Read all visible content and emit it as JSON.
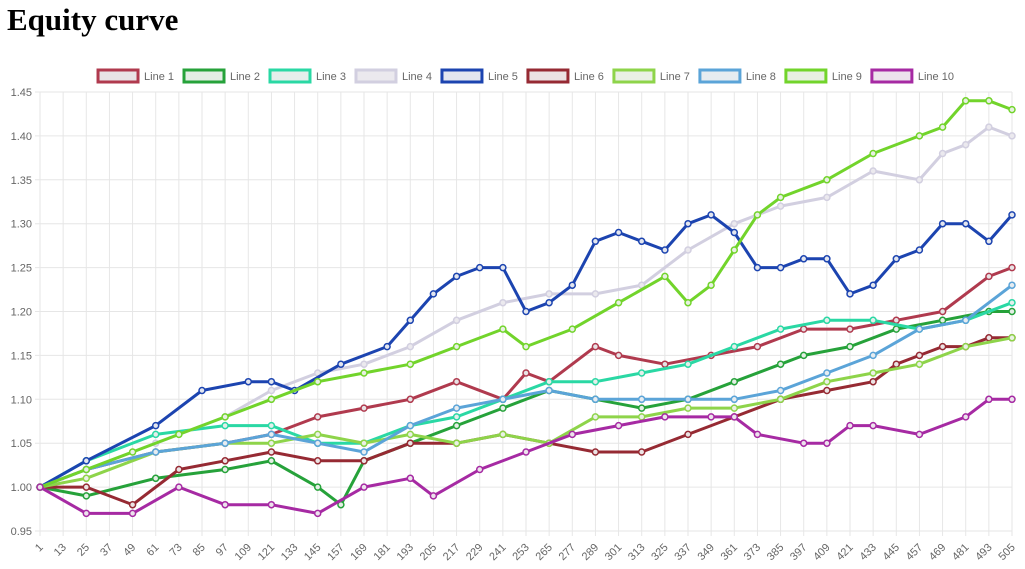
{
  "page": {
    "title": "Equity curve"
  },
  "chart_data": {
    "type": "line",
    "title": "Equity curve",
    "xlabel": "",
    "ylabel": "",
    "x_range": [
      1,
      505
    ],
    "x_tick_labels": [
      "1",
      "13",
      "25",
      "37",
      "49",
      "61",
      "73",
      "85",
      "97",
      "109",
      "121",
      "133",
      "145",
      "157",
      "169",
      "181",
      "193",
      "205",
      "217",
      "229",
      "241",
      "253",
      "265",
      "277",
      "289",
      "301",
      "313",
      "325",
      "337",
      "349",
      "361",
      "373",
      "385",
      "397",
      "409",
      "421",
      "433",
      "445",
      "457",
      "469",
      "481",
      "493",
      "505"
    ],
    "ylim": [
      0.95,
      1.45
    ],
    "y_ticks": [
      "0.95",
      "1.00",
      "1.05",
      "1.10",
      "1.15",
      "1.20",
      "1.25",
      "1.30",
      "1.35",
      "1.40",
      "1.45"
    ],
    "grid": true,
    "legend_position": "top",
    "series": [
      {
        "name": "Line 1",
        "color": "#b03a4e",
        "fill": "#e8e3e5",
        "points": [
          [
            1,
            1.0
          ],
          [
            25,
            1.02
          ],
          [
            61,
            1.04
          ],
          [
            97,
            1.05
          ],
          [
            121,
            1.06
          ],
          [
            145,
            1.08
          ],
          [
            169,
            1.09
          ],
          [
            193,
            1.1
          ],
          [
            217,
            1.12
          ],
          [
            241,
            1.1
          ],
          [
            253,
            1.13
          ],
          [
            265,
            1.12
          ],
          [
            289,
            1.16
          ],
          [
            301,
            1.15
          ],
          [
            325,
            1.14
          ],
          [
            349,
            1.15
          ],
          [
            373,
            1.16
          ],
          [
            397,
            1.18
          ],
          [
            421,
            1.18
          ],
          [
            445,
            1.19
          ],
          [
            469,
            1.2
          ],
          [
            493,
            1.24
          ],
          [
            505,
            1.25
          ]
        ]
      },
      {
        "name": "Line 2",
        "color": "#26a23a",
        "fill": "#e4eee5",
        "points": [
          [
            1,
            1.0
          ],
          [
            25,
            0.99
          ],
          [
            61,
            1.01
          ],
          [
            97,
            1.02
          ],
          [
            121,
            1.03
          ],
          [
            145,
            1.0
          ],
          [
            157,
            0.98
          ],
          [
            169,
            1.03
          ],
          [
            193,
            1.05
          ],
          [
            217,
            1.07
          ],
          [
            241,
            1.09
          ],
          [
            265,
            1.11
          ],
          [
            289,
            1.1
          ],
          [
            313,
            1.09
          ],
          [
            337,
            1.1
          ],
          [
            361,
            1.12
          ],
          [
            385,
            1.14
          ],
          [
            397,
            1.15
          ],
          [
            421,
            1.16
          ],
          [
            445,
            1.18
          ],
          [
            469,
            1.19
          ],
          [
            493,
            1.2
          ],
          [
            505,
            1.2
          ]
        ]
      },
      {
        "name": "Line 3",
        "color": "#2ad8a4",
        "fill": "#e5eeeb",
        "points": [
          [
            1,
            1.0
          ],
          [
            25,
            1.03
          ],
          [
            61,
            1.06
          ],
          [
            97,
            1.07
          ],
          [
            121,
            1.07
          ],
          [
            145,
            1.05
          ],
          [
            169,
            1.05
          ],
          [
            193,
            1.07
          ],
          [
            217,
            1.08
          ],
          [
            241,
            1.1
          ],
          [
            265,
            1.12
          ],
          [
            289,
            1.12
          ],
          [
            313,
            1.13
          ],
          [
            337,
            1.14
          ],
          [
            361,
            1.16
          ],
          [
            385,
            1.18
          ],
          [
            409,
            1.19
          ],
          [
            433,
            1.19
          ],
          [
            457,
            1.18
          ],
          [
            481,
            1.19
          ],
          [
            505,
            1.21
          ]
        ]
      },
      {
        "name": "Line 4",
        "color": "#d2cfe0",
        "fill": "#ebe9ee",
        "points": [
          [
            1,
            1.0
          ],
          [
            25,
            1.02
          ],
          [
            61,
            1.05
          ],
          [
            97,
            1.08
          ],
          [
            121,
            1.11
          ],
          [
            145,
            1.13
          ],
          [
            169,
            1.14
          ],
          [
            193,
            1.16
          ],
          [
            217,
            1.19
          ],
          [
            241,
            1.21
          ],
          [
            265,
            1.22
          ],
          [
            289,
            1.22
          ],
          [
            313,
            1.23
          ],
          [
            337,
            1.27
          ],
          [
            361,
            1.3
          ],
          [
            385,
            1.32
          ],
          [
            409,
            1.33
          ],
          [
            433,
            1.36
          ],
          [
            457,
            1.35
          ],
          [
            469,
            1.38
          ],
          [
            481,
            1.39
          ],
          [
            493,
            1.41
          ],
          [
            505,
            1.4
          ]
        ]
      },
      {
        "name": "Line 5",
        "color": "#1c44b0",
        "fill": "#e3e6ef",
        "points": [
          [
            1,
            1.0
          ],
          [
            25,
            1.03
          ],
          [
            61,
            1.07
          ],
          [
            85,
            1.11
          ],
          [
            109,
            1.12
          ],
          [
            121,
            1.12
          ],
          [
            133,
            1.11
          ],
          [
            157,
            1.14
          ],
          [
            181,
            1.16
          ],
          [
            193,
            1.19
          ],
          [
            205,
            1.22
          ],
          [
            217,
            1.24
          ],
          [
            229,
            1.25
          ],
          [
            241,
            1.25
          ],
          [
            253,
            1.2
          ],
          [
            265,
            1.21
          ],
          [
            277,
            1.23
          ],
          [
            289,
            1.28
          ],
          [
            301,
            1.29
          ],
          [
            313,
            1.28
          ],
          [
            325,
            1.27
          ],
          [
            337,
            1.3
          ],
          [
            349,
            1.31
          ],
          [
            361,
            1.29
          ],
          [
            373,
            1.25
          ],
          [
            385,
            1.25
          ],
          [
            397,
            1.26
          ],
          [
            409,
            1.26
          ],
          [
            421,
            1.22
          ],
          [
            433,
            1.23
          ],
          [
            445,
            1.26
          ],
          [
            457,
            1.27
          ],
          [
            469,
            1.3
          ],
          [
            481,
            1.3
          ],
          [
            493,
            1.28
          ],
          [
            505,
            1.31
          ]
        ]
      },
      {
        "name": "Line 6",
        "color": "#962a33",
        "fill": "#ebe3e4",
        "points": [
          [
            1,
            1.0
          ],
          [
            25,
            1.0
          ],
          [
            49,
            0.98
          ],
          [
            73,
            1.02
          ],
          [
            97,
            1.03
          ],
          [
            121,
            1.04
          ],
          [
            145,
            1.03
          ],
          [
            169,
            1.03
          ],
          [
            193,
            1.05
          ],
          [
            217,
            1.05
          ],
          [
            241,
            1.06
          ],
          [
            265,
            1.05
          ],
          [
            289,
            1.04
          ],
          [
            313,
            1.04
          ],
          [
            337,
            1.06
          ],
          [
            361,
            1.08
          ],
          [
            385,
            1.1
          ],
          [
            409,
            1.11
          ],
          [
            433,
            1.12
          ],
          [
            445,
            1.14
          ],
          [
            457,
            1.15
          ],
          [
            469,
            1.16
          ],
          [
            481,
            1.16
          ],
          [
            493,
            1.17
          ],
          [
            505,
            1.17
          ]
        ]
      },
      {
        "name": "Line 7",
        "color": "#8ed44a",
        "fill": "#eaf0e5",
        "points": [
          [
            1,
            1.0
          ],
          [
            25,
            1.01
          ],
          [
            61,
            1.04
          ],
          [
            97,
            1.05
          ],
          [
            121,
            1.05
          ],
          [
            145,
            1.06
          ],
          [
            169,
            1.05
          ],
          [
            193,
            1.06
          ],
          [
            217,
            1.05
          ],
          [
            241,
            1.06
          ],
          [
            265,
            1.05
          ],
          [
            289,
            1.08
          ],
          [
            313,
            1.08
          ],
          [
            337,
            1.09
          ],
          [
            361,
            1.09
          ],
          [
            385,
            1.1
          ],
          [
            409,
            1.12
          ],
          [
            433,
            1.13
          ],
          [
            457,
            1.14
          ],
          [
            481,
            1.16
          ],
          [
            505,
            1.17
          ]
        ]
      },
      {
        "name": "Line 8",
        "color": "#5ba4d8",
        "fill": "#e6ecf0",
        "points": [
          [
            1,
            1.0
          ],
          [
            25,
            1.02
          ],
          [
            61,
            1.04
          ],
          [
            97,
            1.05
          ],
          [
            121,
            1.06
          ],
          [
            145,
            1.05
          ],
          [
            169,
            1.04
          ],
          [
            193,
            1.07
          ],
          [
            217,
            1.09
          ],
          [
            241,
            1.1
          ],
          [
            265,
            1.11
          ],
          [
            289,
            1.1
          ],
          [
            313,
            1.1
          ],
          [
            337,
            1.1
          ],
          [
            361,
            1.1
          ],
          [
            385,
            1.11
          ],
          [
            409,
            1.13
          ],
          [
            433,
            1.15
          ],
          [
            457,
            1.18
          ],
          [
            481,
            1.19
          ],
          [
            505,
            1.23
          ]
        ]
      },
      {
        "name": "Line 9",
        "color": "#72d42b",
        "fill": "#e8efe3",
        "points": [
          [
            1,
            1.0
          ],
          [
            25,
            1.02
          ],
          [
            49,
            1.04
          ],
          [
            73,
            1.06
          ],
          [
            97,
            1.08
          ],
          [
            121,
            1.1
          ],
          [
            145,
            1.12
          ],
          [
            169,
            1.13
          ],
          [
            193,
            1.14
          ],
          [
            217,
            1.16
          ],
          [
            241,
            1.18
          ],
          [
            253,
            1.16
          ],
          [
            277,
            1.18
          ],
          [
            301,
            1.21
          ],
          [
            325,
            1.24
          ],
          [
            337,
            1.21
          ],
          [
            349,
            1.23
          ],
          [
            361,
            1.27
          ],
          [
            373,
            1.31
          ],
          [
            385,
            1.33
          ],
          [
            409,
            1.35
          ],
          [
            433,
            1.38
          ],
          [
            457,
            1.4
          ],
          [
            469,
            1.41
          ],
          [
            481,
            1.44
          ],
          [
            493,
            1.44
          ],
          [
            505,
            1.43
          ]
        ]
      },
      {
        "name": "Line 10",
        "color": "#a62aa3",
        "fill": "#ece3ec",
        "points": [
          [
            1,
            1.0
          ],
          [
            25,
            0.97
          ],
          [
            49,
            0.97
          ],
          [
            73,
            1.0
          ],
          [
            97,
            0.98
          ],
          [
            121,
            0.98
          ],
          [
            145,
            0.97
          ],
          [
            169,
            1.0
          ],
          [
            193,
            1.01
          ],
          [
            205,
            0.99
          ],
          [
            229,
            1.02
          ],
          [
            253,
            1.04
          ],
          [
            277,
            1.06
          ],
          [
            301,
            1.07
          ],
          [
            325,
            1.08
          ],
          [
            349,
            1.08
          ],
          [
            361,
            1.08
          ],
          [
            373,
            1.06
          ],
          [
            397,
            1.05
          ],
          [
            409,
            1.05
          ],
          [
            421,
            1.07
          ],
          [
            433,
            1.07
          ],
          [
            457,
            1.06
          ],
          [
            481,
            1.08
          ],
          [
            493,
            1.1
          ],
          [
            505,
            1.1
          ]
        ]
      }
    ]
  }
}
